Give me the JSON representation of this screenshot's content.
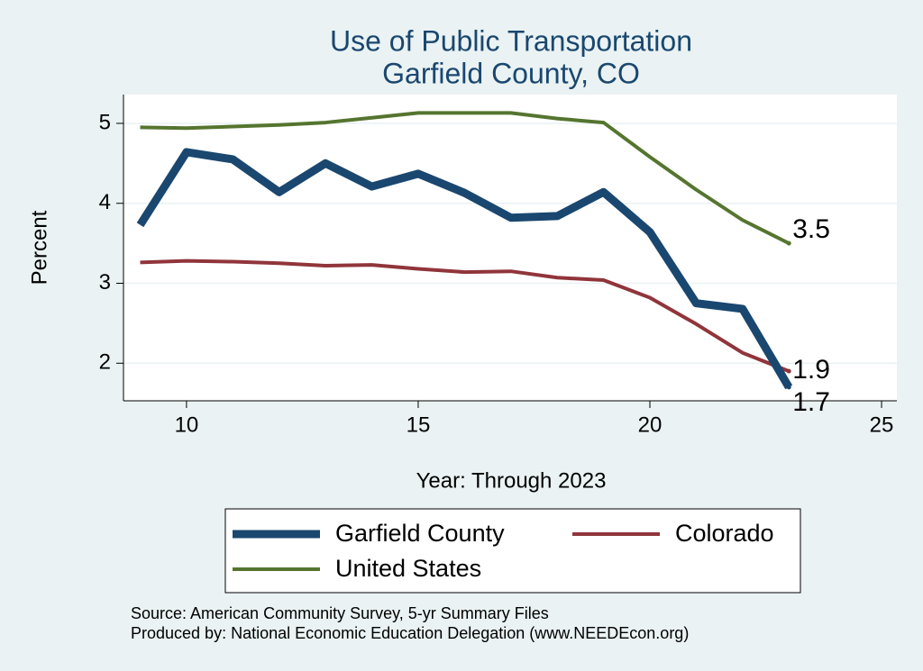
{
  "chart_data": {
    "type": "line",
    "title": [
      "Use of Public Transportation",
      "Garfield County, CO"
    ],
    "x_label": "Year: Through 2023",
    "y_label": "Percent",
    "x": [
      9,
      10,
      11,
      12,
      13,
      14,
      15,
      16,
      17,
      18,
      19,
      20,
      21,
      22,
      23
    ],
    "series": [
      {
        "name": "Garfield County",
        "color": "#1a476f",
        "width": 9,
        "values": [
          3.73,
          4.64,
          4.55,
          4.14,
          4.5,
          4.21,
          4.37,
          4.13,
          3.82,
          3.84,
          4.14,
          3.64,
          2.75,
          2.68,
          1.7
        ],
        "value_labels": [
          null,
          null,
          null,
          null,
          null,
          null,
          null,
          null,
          null,
          null,
          null,
          null,
          null,
          null,
          "1.7"
        ]
      },
      {
        "name": "Colorado",
        "color": "#90353b",
        "width": 4,
        "values": [
          3.26,
          3.28,
          3.27,
          3.25,
          3.22,
          3.23,
          3.18,
          3.14,
          3.15,
          3.07,
          3.04,
          2.82,
          2.49,
          2.13,
          1.9
        ],
        "value_labels": [
          null,
          null,
          null,
          null,
          null,
          null,
          null,
          null,
          null,
          null,
          null,
          null,
          null,
          null,
          "1.9"
        ]
      },
      {
        "name": "United States",
        "color": "#55752f",
        "width": 4,
        "values": [
          4.95,
          4.94,
          4.96,
          4.98,
          5.01,
          5.07,
          5.13,
          5.13,
          5.13,
          5.06,
          5.01,
          4.58,
          4.17,
          3.79,
          3.5
        ],
        "value_labels": [
          null,
          null,
          null,
          null,
          null,
          null,
          null,
          null,
          null,
          null,
          null,
          null,
          null,
          null,
          "3.5"
        ]
      }
    ],
    "xlim": [
      8.64,
      25.33
    ],
    "xticks": [
      10,
      15,
      20,
      25
    ],
    "ylim": [
      1.53,
      5.36
    ],
    "yticks": [
      2,
      3,
      4,
      5
    ],
    "grid": true,
    "notes": [
      "Source: American Community Survey, 5-yr Summary Files",
      "Produced by: National Economic Education Delegation (www.NEEDEcon.org)"
    ]
  }
}
